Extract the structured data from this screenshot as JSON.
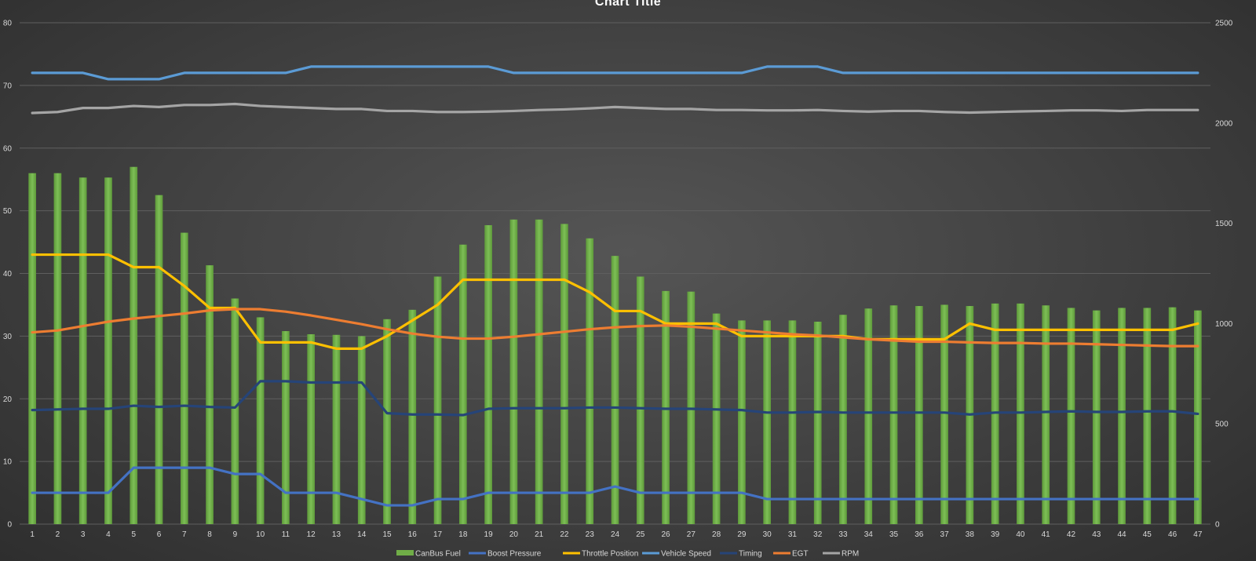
{
  "chart_data": {
    "type": "bar",
    "title": "Chart Title",
    "xlabel": "",
    "ylabel": "",
    "categories": [
      "1",
      "2",
      "3",
      "4",
      "5",
      "6",
      "7",
      "8",
      "9",
      "10",
      "11",
      "12",
      "13",
      "14",
      "15",
      "16",
      "17",
      "18",
      "19",
      "20",
      "21",
      "22",
      "23",
      "24",
      "25",
      "26",
      "27",
      "28",
      "29",
      "30",
      "31",
      "32",
      "33",
      "34",
      "35",
      "36",
      "37",
      "38",
      "39",
      "40",
      "41",
      "42",
      "43",
      "44",
      "45",
      "46",
      "47"
    ],
    "ylim": [
      0,
      80
    ],
    "y_ticks": [
      "0",
      "10",
      "20",
      "30",
      "40",
      "50",
      "60",
      "70",
      "80"
    ],
    "y2lim": [
      0,
      2500
    ],
    "y2_ticks": [
      "0",
      "500",
      "1000",
      "1500",
      "2000",
      "2500"
    ],
    "grid": true,
    "legend_position": "bottom",
    "series": [
      {
        "name": "CanBus Fuel",
        "type": "bar",
        "axis": "left",
        "color": "#70ad47",
        "values": [
          56,
          56,
          55.3,
          55.3,
          57,
          52.5,
          46.5,
          41.3,
          36,
          33,
          30.8,
          30.3,
          30.2,
          30,
          32.7,
          34.2,
          39.5,
          44.6,
          47.7,
          48.6,
          48.6,
          47.9,
          45.6,
          42.8,
          39.5,
          37.2,
          37.1,
          33.6,
          32.5,
          32.5,
          32.5,
          32.3,
          33.4,
          34.4,
          34.9,
          34.8,
          35,
          34.8,
          35.2,
          35.2,
          34.9,
          34.5,
          34.1,
          34.5,
          34.5,
          34.6,
          34.1
        ]
      },
      {
        "name": "Boost Pressure",
        "type": "line",
        "axis": "left",
        "color": "#4472c4",
        "values": [
          5,
          5,
          5,
          5,
          9,
          9,
          9,
          9,
          8,
          8,
          5,
          5,
          5,
          4,
          3,
          3,
          4,
          4,
          5,
          5,
          5,
          5,
          5,
          6,
          5,
          5,
          5,
          5,
          5,
          4,
          4,
          4,
          4,
          4,
          4,
          4,
          4,
          4,
          4,
          4,
          4,
          4,
          4,
          4,
          4,
          4,
          4
        ]
      },
      {
        "name": "Throttle Position",
        "type": "line",
        "axis": "left",
        "color": "#ffc000",
        "values": [
          43,
          43,
          43,
          43,
          41,
          41,
          38,
          34.5,
          34.5,
          29,
          29,
          29,
          28,
          28,
          30,
          32.5,
          35,
          39,
          39,
          39,
          39,
          39,
          37,
          34,
          34,
          32,
          32,
          32,
          30,
          30,
          30,
          30,
          30,
          29.5,
          29.5,
          29.5,
          29.5,
          32,
          31,
          31,
          31,
          31,
          31,
          31,
          31,
          31,
          32
        ]
      },
      {
        "name": "Vehicle Speed",
        "type": "line",
        "axis": "left",
        "color": "#5b9bd5",
        "values": [
          72,
          72,
          72,
          71,
          71,
          71,
          72,
          72,
          72,
          72,
          72,
          73,
          73,
          73,
          73,
          73,
          73,
          73,
          73,
          72,
          72,
          72,
          72,
          72,
          72,
          72,
          72,
          72,
          72,
          73,
          73,
          73,
          72,
          72,
          72,
          72,
          72,
          72,
          72,
          72,
          72,
          72,
          72,
          72,
          72,
          72,
          72
        ]
      },
      {
        "name": "Timing",
        "type": "line",
        "axis": "left",
        "color": "#264478",
        "values": [
          18.2,
          18.3,
          18.4,
          18.4,
          18.9,
          18.7,
          18.9,
          18.7,
          18.6,
          22.8,
          22.8,
          22.6,
          22.6,
          22.6,
          17.7,
          17.5,
          17.5,
          17.4,
          18.4,
          18.5,
          18.5,
          18.5,
          18.6,
          18.6,
          18.5,
          18.4,
          18.4,
          18.3,
          18.2,
          17.8,
          17.8,
          17.9,
          17.8,
          17.8,
          17.8,
          17.8,
          17.8,
          17.5,
          17.8,
          17.8,
          17.9,
          18,
          17.9,
          17.9,
          18,
          18,
          17.6
        ]
      },
      {
        "name": "EGT",
        "type": "line",
        "axis": "left",
        "color": "#ed7d31",
        "values": [
          30.6,
          30.9,
          31.6,
          32.3,
          32.8,
          33.2,
          33.6,
          34.1,
          34.3,
          34.3,
          33.9,
          33.3,
          32.6,
          31.9,
          31.1,
          30.4,
          29.9,
          29.6,
          29.6,
          29.9,
          30.3,
          30.7,
          31.1,
          31.4,
          31.6,
          31.7,
          31.5,
          31.2,
          30.9,
          30.6,
          30.3,
          30.1,
          29.8,
          29.5,
          29.3,
          29.1,
          29.1,
          29,
          28.9,
          28.9,
          28.8,
          28.8,
          28.7,
          28.6,
          28.5,
          28.4,
          28.4
        ]
      },
      {
        "name": "RPM",
        "type": "line",
        "axis": "right",
        "color": "#a5a5a5",
        "values": [
          2050,
          2055,
          2075,
          2075,
          2085,
          2080,
          2090,
          2090,
          2095,
          2085,
          2080,
          2075,
          2070,
          2070,
          2060,
          2060,
          2055,
          2055,
          2057,
          2060,
          2065,
          2068,
          2073,
          2080,
          2075,
          2070,
          2070,
          2065,
          2065,
          2063,
          2063,
          2065,
          2060,
          2057,
          2060,
          2060,
          2055,
          2052,
          2055,
          2058,
          2060,
          2063,
          2063,
          2060,
          2065,
          2065,
          2065
        ]
      }
    ]
  }
}
